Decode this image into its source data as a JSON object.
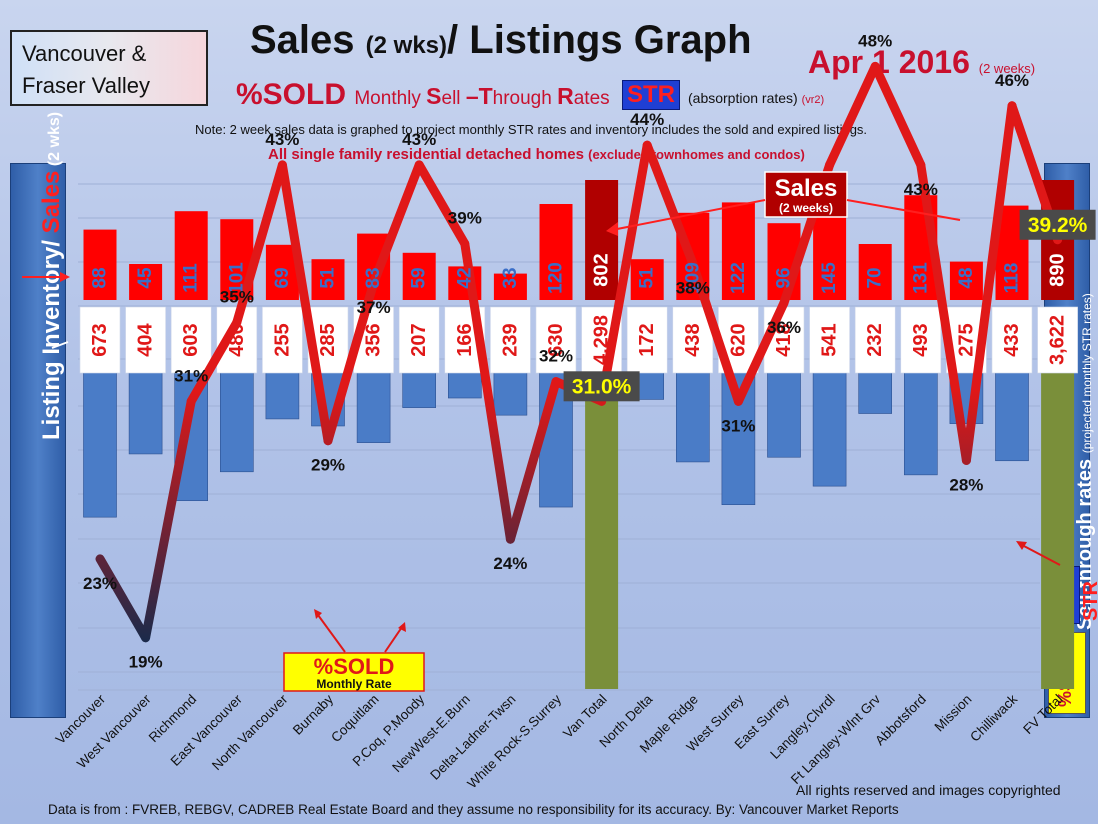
{
  "region": {
    "line1": "Vancouver &",
    "line2": "Fraser Valley"
  },
  "title": {
    "main": "Sales ",
    "small": "(2 wks)",
    "rest": "/ Listings Graph"
  },
  "date": {
    "main": "Apr 1 2016",
    "small": "(2 weeks)"
  },
  "sold_line": {
    "big": "%SOLD ",
    "monthly": "Monthly ",
    "S": "S",
    "ell": "ell ",
    "T": "–T",
    "hrough": "hrough ",
    "R": "R",
    "ates": "ates"
  },
  "str_label": "STR",
  "absorption": {
    "text": "(absorption rates) ",
    "vr": "(vr2)"
  },
  "note": "Note: 2 week sales data is graphed to project monthly STR rates and inventory includes the sold and expired listings.",
  "scope": {
    "main": "All single family residential detached homes ",
    "sub": "(excludes townhomes and condos)"
  },
  "left_axis": {
    "listing": "Listing Inventory/ ",
    "sales": "Sales",
    "sub": " (2 wks)"
  },
  "right_axis": {
    "main": "Sell-through rates ",
    "sub": "(projected monthly STR rates)"
  },
  "right_str_tag": "STR",
  "right_sold_tag": "%SOLD",
  "callouts": {
    "sales_title": "Sales",
    "sales_sub": "(2 weeks)",
    "sold_title": "%SOLD",
    "sold_sub": "Monthly Rate"
  },
  "colors": {
    "sales_red": "#ff0000",
    "total_red": "#b00000",
    "listing_blue": "#4a7cc7",
    "total_green": "#7a8f3a",
    "label_blue": "#3a6ec8",
    "line_red": "#e01818",
    "line_dark": "#1c2a4a"
  },
  "footer": {
    "rights": "All rights reserved and  images copyrighted",
    "source": "Data is from : FVREB, REBGV, CADREB Real Estate Board and they assume  no responsibility  for its accuracy. By: Vancouver Market Reports"
  },
  "chart_data": {
    "type": "bar",
    "categories": [
      "Vancouver",
      "West Vancouver",
      "Richmond",
      "East Vancouver",
      "North Vancouver",
      "Burnaby",
      "Coquitlam",
      "P.Coq, P.Moody",
      "NewWest-E.Burn",
      "Delta-Ladner-Twsn",
      "White Rock-S.Surrey",
      "Van Total",
      "North Delta",
      "Maple Ridge",
      "West Surrey",
      "East Surrey",
      "Langley,Clvrdl",
      "Ft Langley-Wlnt Grv",
      "Abbotsford",
      "Mission",
      "Chilliwack",
      "FV Total"
    ],
    "series": [
      {
        "name": "Sales",
        "values": [
          88,
          45,
          111,
          101,
          69,
          51,
          83,
          59,
          42,
          33,
          120,
          802,
          51,
          109,
          122,
          96,
          145,
          70,
          131,
          48,
          118,
          890
        ]
      },
      {
        "name": "Listing Inventory",
        "values": [
          673,
          404,
          603,
          480,
          255,
          285,
          356,
          207,
          166,
          239,
          630,
          4298,
          172,
          438,
          620,
          418,
          541,
          232,
          493,
          275,
          433,
          3622
        ]
      },
      {
        "name": "%SOLD",
        "values": [
          23,
          19,
          31,
          35,
          43,
          29,
          37,
          43,
          39,
          24,
          32,
          31.0,
          44,
          38,
          31,
          36,
          43,
          48,
          43,
          28,
          46,
          39.2
        ]
      }
    ],
    "listing_labels": [
      "673",
      "404",
      "603",
      "480",
      "255",
      "285",
      "356",
      "207",
      "166",
      "239",
      "630",
      "4,298",
      "172",
      "438",
      "620",
      "418",
      "541",
      "232",
      "493",
      "275",
      "433",
      "3,622"
    ],
    "percent_labels": [
      "23%",
      "19%",
      "31%",
      "35%",
      "43%",
      "29%",
      "37%",
      "43%",
      "39%",
      "24%",
      "32%",
      "31.0%",
      "44%",
      "38%",
      "31%",
      "36%",
      "43%",
      "48%",
      "43%",
      "28%",
      "46%",
      "39.2%"
    ],
    "total_indices": [
      11,
      21
    ]
  }
}
